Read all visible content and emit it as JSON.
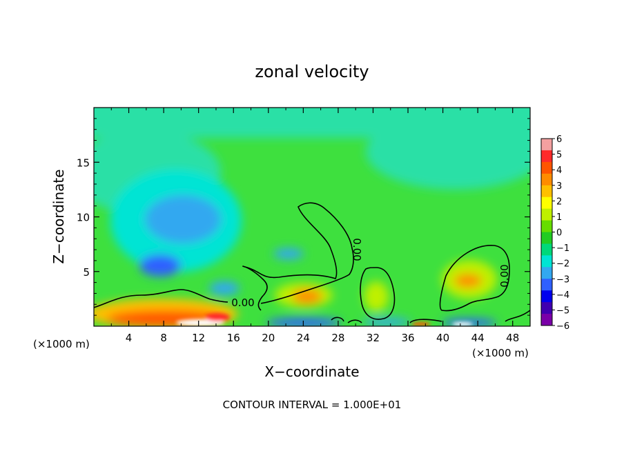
{
  "chart_data": {
    "type": "heatmap",
    "title": "zonal velocity",
    "xlabel": "X−coordinate",
    "ylabel": "Z−coordinate",
    "xlim": [
      0,
      50
    ],
    "ylim": [
      0,
      20
    ],
    "x_ticks": [
      4,
      8,
      12,
      16,
      20,
      24,
      28,
      32,
      36,
      40,
      44,
      48
    ],
    "y_ticks": [
      5,
      10,
      15
    ],
    "x_unit_left": "(×1000 m)",
    "x_unit_right": "(×1000 m)",
    "contour_level": 0.0,
    "contour_labels": [
      "0.00",
      "0.00",
      "0.00"
    ],
    "footer": "CONTOUR INTERVAL = 1.000E+01",
    "colorbar": {
      "ticks": [
        "6",
        "5",
        "4",
        "3",
        "2",
        "1",
        "0",
        "−1",
        "−2",
        "−3",
        "−4",
        "−5",
        "−6"
      ],
      "range": [
        -6,
        6
      ],
      "colors": [
        "#f4a0a0",
        "#ff2a2a",
        "#ff5500",
        "#ff8c00",
        "#ffc000",
        "#ffff00",
        "#bff000",
        "#66dd00",
        "#22cc22",
        "#00d87a",
        "#00e4d4",
        "#33a8f0",
        "#2f60ff",
        "#0000ee",
        "#4000b0",
        "#7a00a8"
      ]
    },
    "features": [
      {
        "x": 8,
        "z": 9.5,
        "value": -2.5,
        "note": "negative core aloft"
      },
      {
        "x": 8,
        "z": 5.5,
        "value": -3,
        "note": "negative core"
      },
      {
        "x": 9,
        "z": 1.2,
        "value": 3.5,
        "note": "positive surface jet"
      },
      {
        "x": 24,
        "z": 2.8,
        "value": 3,
        "note": "positive cell"
      },
      {
        "x": 43,
        "z": 4.0,
        "value": 3.5,
        "note": "positive cell"
      },
      {
        "x": 23,
        "z": 0.3,
        "value": -4,
        "note": "negative near surface"
      },
      {
        "x": 32,
        "z": 0.3,
        "value": -3,
        "note": "negative near surface"
      }
    ]
  }
}
